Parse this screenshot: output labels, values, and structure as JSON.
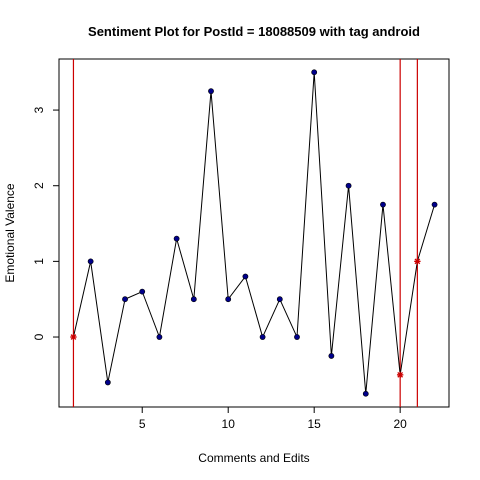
{
  "chart_data": {
    "type": "line",
    "title": "Sentiment Plot for PostId =  18088509  with tag  android",
    "xlabel": "Comments and Edits",
    "ylabel": "Emotional Valence",
    "xlim": [
      0.16,
      22.84
    ],
    "ylim": [
      -0.925,
      3.675
    ],
    "x_ticks": [
      5,
      10,
      15,
      20
    ],
    "y_ticks": [
      0,
      1,
      2,
      3
    ],
    "grid": false,
    "x": [
      1,
      2,
      3,
      4,
      5,
      6,
      7,
      8,
      9,
      10,
      11,
      12,
      13,
      14,
      15,
      16,
      17,
      18,
      19,
      20,
      21,
      22
    ],
    "y": [
      0,
      1,
      -0.6,
      0.5,
      0.6,
      0,
      1.3,
      0.5,
      3.25,
      0.5,
      0.8,
      0,
      0.5,
      0,
      3.5,
      -0.25,
      2,
      -0.75,
      1.75,
      -0.5,
      1,
      1.75
    ],
    "highlight_x": [
      1,
      20,
      21
    ],
    "vertical_lines_x": [
      1,
      20,
      21
    ],
    "colors": {
      "line": "#000000",
      "point_fill": "#00008B",
      "highlight": "#CC0000",
      "vline": "#CC0000"
    }
  }
}
